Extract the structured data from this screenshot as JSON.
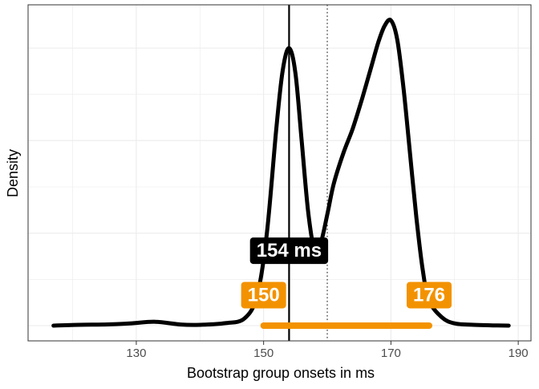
{
  "chart_data": {
    "type": "area",
    "xlabel": "Bootstrap group onsets in ms",
    "ylabel": "Density",
    "xlim": [
      113,
      192
    ],
    "ylim": [
      0,
      1.12
    ],
    "x_ticks": [
      130,
      150,
      170,
      190
    ],
    "y_ticks_labeled": false,
    "grid": true,
    "legend": "none",
    "colors": {
      "curve": "#000000",
      "interval": "#f39200",
      "grid": "#ebebeb",
      "panel_border": "#333333"
    },
    "density": {
      "x": [
        117,
        121,
        125,
        129,
        133,
        137,
        140,
        144,
        147,
        149,
        150.5,
        152,
        153,
        154,
        155,
        156,
        157,
        158,
        159,
        160,
        161,
        162.5,
        164,
        165.5,
        167,
        168,
        169,
        170,
        171,
        172,
        173,
        174,
        175,
        176,
        178,
        180,
        183,
        186,
        188.5
      ],
      "y": [
        0,
        0.003,
        0.004,
        0.008,
        0.014,
        0.004,
        0.003,
        0.009,
        0.026,
        0.11,
        0.33,
        0.71,
        0.92,
        1.0,
        0.91,
        0.66,
        0.41,
        0.27,
        0.3,
        0.4,
        0.51,
        0.62,
        0.71,
        0.82,
        0.94,
        1.02,
        1.08,
        1.1,
        1.03,
        0.85,
        0.62,
        0.39,
        0.2,
        0.09,
        0.03,
        0.008,
        0.003,
        0.001,
        0.0
      ]
    },
    "median_line": 154,
    "reference_line": 160,
    "interval": [
      150,
      176
    ],
    "labels": [
      {
        "text": "154 ms",
        "x": 154,
        "y": 0.27,
        "style": "dark"
      },
      {
        "text": "150",
        "x": 150,
        "y": 0.11,
        "style": "orange"
      },
      {
        "text": "176",
        "x": 176,
        "y": 0.11,
        "style": "orange"
      }
    ]
  }
}
